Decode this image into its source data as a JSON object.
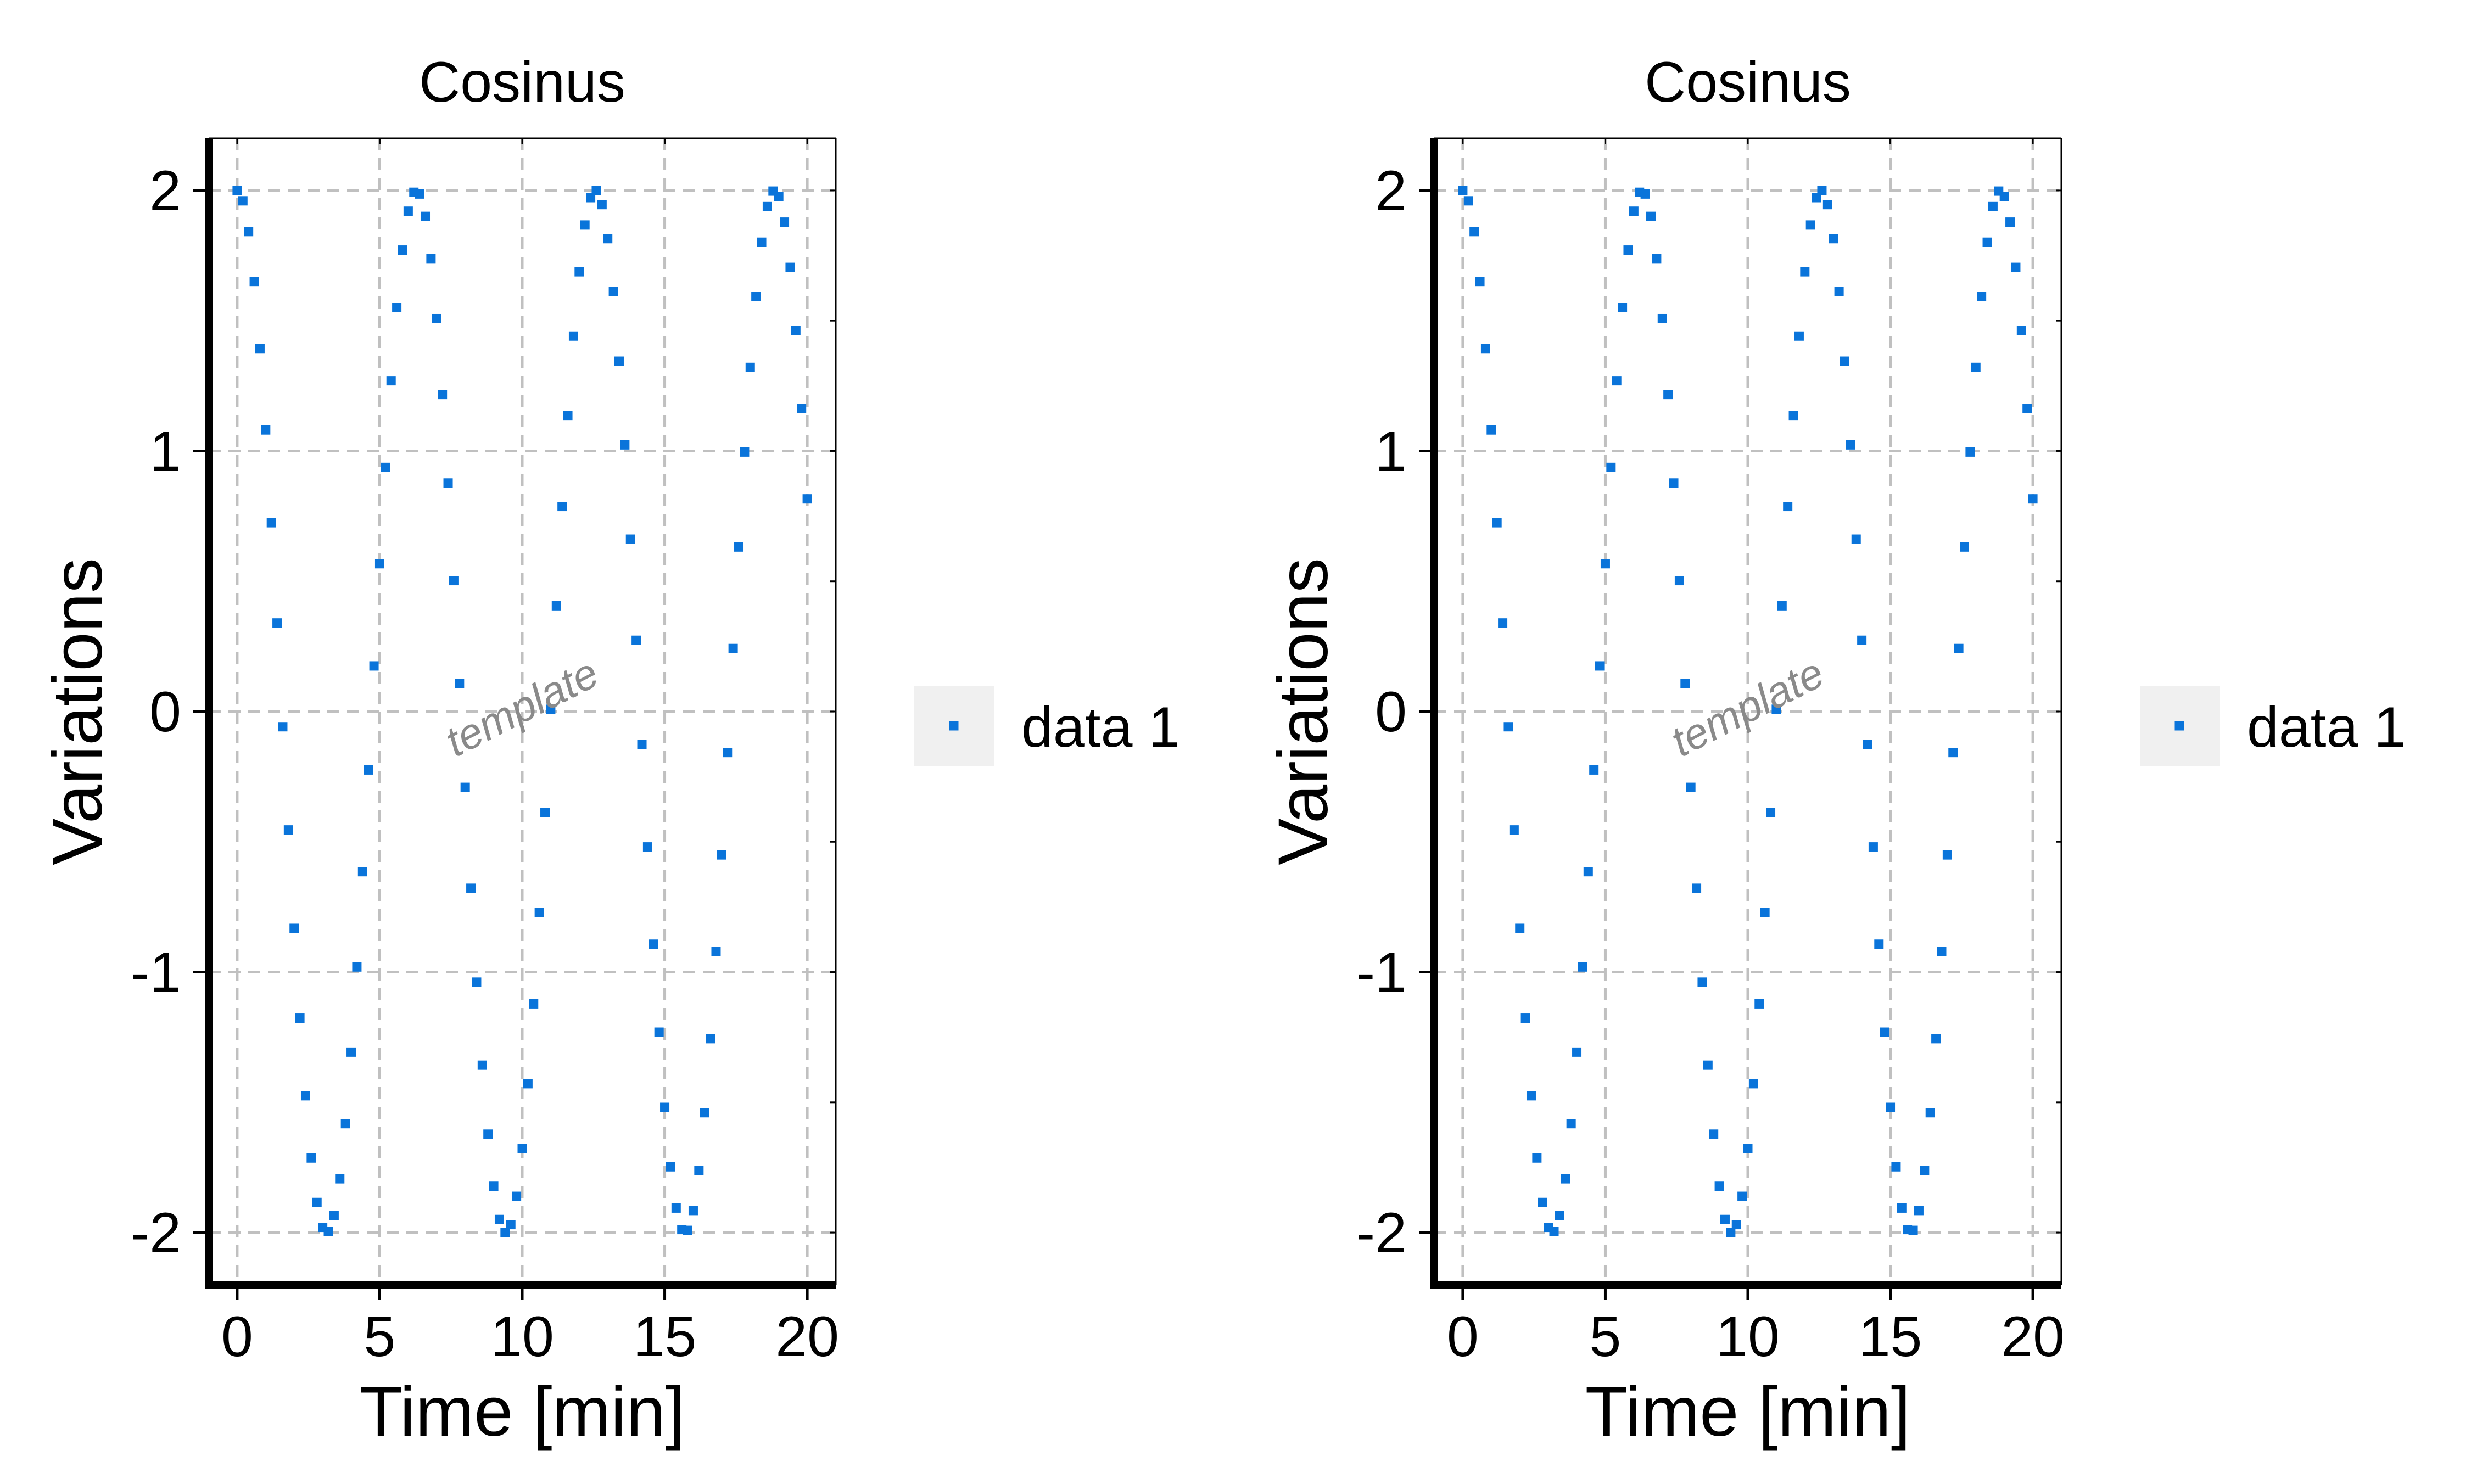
{
  "chart_data": [
    {
      "type": "scatter",
      "title": "Cosinus",
      "xlabel": "Time [min]",
      "ylabel": "Variations",
      "xlim": [
        -1,
        21
      ],
      "ylim": [
        -2.2,
        2.2
      ],
      "xticks": [
        0,
        5,
        10,
        15,
        20
      ],
      "yticks": [
        -2,
        -1,
        0,
        1,
        2
      ],
      "xtick_labels": [
        "0",
        "5",
        "10",
        "15",
        "20"
      ],
      "ytick_labels": [
        "-2",
        "-1",
        "0",
        "1",
        "2"
      ],
      "grid": true,
      "legend_position": "right",
      "watermark": "template",
      "marker_color": "#0a74da",
      "grid_color": "#c0c0c0",
      "series": [
        {
          "name": "data 1",
          "function": "2*cos(x)",
          "x_range": [
            0,
            20
          ],
          "x_step": 0.2
        }
      ]
    },
    {
      "type": "scatter",
      "title": "Cosinus",
      "xlabel": "Time [min]",
      "ylabel": "Variations",
      "xlim": [
        -1,
        21
      ],
      "ylim": [
        -2.2,
        2.2
      ],
      "xticks": [
        0,
        5,
        10,
        15,
        20
      ],
      "yticks": [
        -2,
        -1,
        0,
        1,
        2
      ],
      "xtick_labels": [
        "0",
        "5",
        "10",
        "15",
        "20"
      ],
      "ytick_labels": [
        "-2",
        "-1",
        "0",
        "1",
        "2"
      ],
      "grid": true,
      "legend_position": "right",
      "watermark": "template",
      "marker_color": "#0a74da",
      "grid_color": "#c0c0c0",
      "series": [
        {
          "name": "data 1",
          "function": "2*cos(x)",
          "x_range": [
            0,
            20
          ],
          "x_step": 0.2
        }
      ]
    }
  ]
}
